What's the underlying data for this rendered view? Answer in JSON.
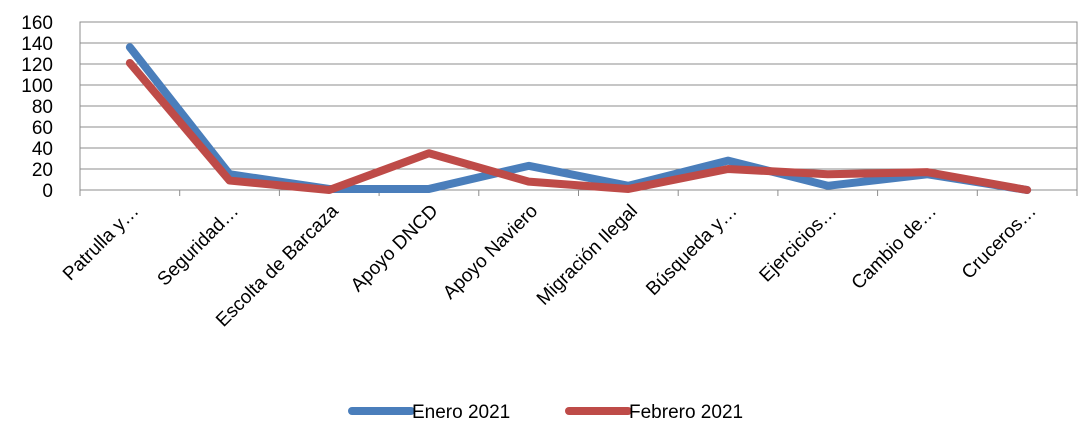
{
  "chart_data": {
    "type": "line",
    "categories": [
      "Patrulla y…",
      "Seguridad…",
      "Escolta de Barcaza",
      "Apoyo DNCD",
      "Apoyo Naviero",
      "Migración Ilegal",
      "Búsqueda y…",
      "Ejercicios…",
      "Cambio de…",
      "Cruceros…"
    ],
    "series": [
      {
        "name": "Enero 2021",
        "color": "#4a7ebb",
        "values": [
          136,
          15,
          1,
          1,
          23,
          4,
          28,
          4,
          15,
          0
        ]
      },
      {
        "name": "Febrero 2021",
        "color": "#be4b48",
        "values": [
          121,
          9,
          0,
          35,
          8,
          1,
          20,
          15,
          17,
          0
        ]
      }
    ],
    "yticks": [
      "0",
      "20",
      "40",
      "60",
      "80",
      "100",
      "120",
      "140",
      "160"
    ],
    "ylim": [
      0,
      160
    ],
    "grid": true,
    "legend": "bottom"
  }
}
